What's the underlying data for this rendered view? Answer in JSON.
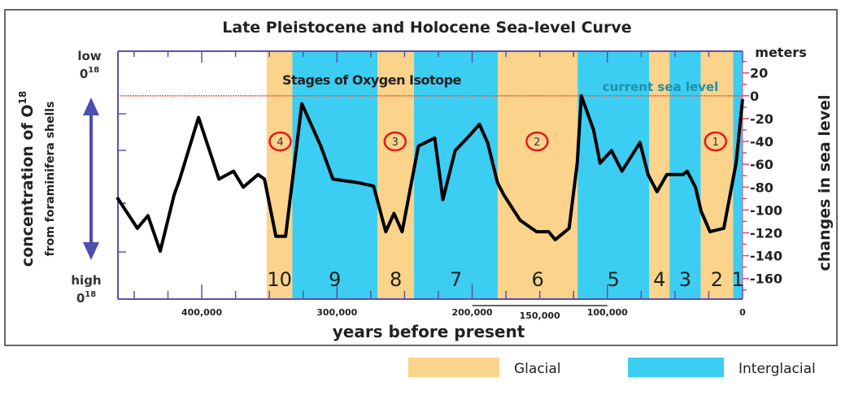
{
  "chart_data": {
    "type": "line",
    "title": "Late Pleistocene and Holocene Sea-level Curve",
    "xlabel": "years before present",
    "ylabel_right": "changes in sea level",
    "right_unit": "meters",
    "ylabel_left": "concentration of O",
    "ylabel_left_sup": "18",
    "ylabel_left_sub": "from foraminifera shells",
    "left_top_label": "low",
    "left_bottom_label": "high",
    "left_iso": "0",
    "left_iso_sup": "18",
    "xlim": [
      462000,
      0
    ],
    "ylim": [
      -178,
      39
    ],
    "x_ticks": [
      {
        "value": 400000,
        "label": "400,000"
      },
      {
        "value": 300000,
        "label": "300,000"
      },
      {
        "value": 200000,
        "label": "200,000"
      },
      {
        "value": 100000,
        "label": "100,000"
      },
      {
        "value": 0,
        "label": "0"
      }
    ],
    "x_extra_label": {
      "value": 150000,
      "label": "150,000",
      "span": [
        200000,
        100000
      ]
    },
    "y_ticks": [
      {
        "value": 20,
        "label": "20"
      },
      {
        "value": 0,
        "label": "0"
      },
      {
        "value": -20,
        "label": "-20"
      },
      {
        "value": -40,
        "label": "-40"
      },
      {
        "value": -60,
        "label": "-60"
      },
      {
        "value": -80,
        "label": "-80"
      },
      {
        "value": -100,
        "label": "-100"
      },
      {
        "value": -120,
        "label": "-120"
      },
      {
        "value": -140,
        "label": "-140"
      },
      {
        "value": -160,
        "label": "-160"
      }
    ],
    "current_sea_level": {
      "value": 0,
      "label": "current sea level"
    },
    "stages_label": "Stages of Oxygen Isotope",
    "stages": [
      {
        "label": "10",
        "type": "glacial",
        "from": 352000,
        "to": 333000
      },
      {
        "label": "9",
        "type": "interglacial",
        "from": 333000,
        "to": 270000
      },
      {
        "label": "8",
        "type": "glacial",
        "from": 270000,
        "to": 243000
      },
      {
        "label": "7",
        "type": "interglacial",
        "from": 243000,
        "to": 181000
      },
      {
        "label": "6",
        "type": "glacial",
        "from": 181000,
        "to": 122000
      },
      {
        "label": "5",
        "type": "interglacial",
        "from": 122000,
        "to": 69000
      },
      {
        "label": "4",
        "type": "glacial",
        "from": 69000,
        "to": 54000
      },
      {
        "label": "3",
        "type": "interglacial",
        "from": 54000,
        "to": 31000
      },
      {
        "label": "2",
        "type": "glacial",
        "from": 31000,
        "to": 7000
      },
      {
        "label": "1",
        "type": "interglacial",
        "from": 7000,
        "to": 0
      }
    ],
    "glacial_markers": [
      {
        "label": "4",
        "x": 342000,
        "y": -40
      },
      {
        "label": "3",
        "x": 257000,
        "y": -40
      },
      {
        "label": "2",
        "x": 152000,
        "y": -40
      },
      {
        "label": "1",
        "x": 20000,
        "y": -40
      }
    ],
    "series": [
      {
        "name": "sea level",
        "points": [
          [
            462600,
            -89
          ],
          [
            447600,
            -116
          ],
          [
            439800,
            -105
          ],
          [
            430700,
            -136
          ],
          [
            420500,
            -87
          ],
          [
            416300,
            -73
          ],
          [
            402400,
            -19
          ],
          [
            387300,
            -73
          ],
          [
            376500,
            -66
          ],
          [
            369300,
            -80
          ],
          [
            358400,
            -69
          ],
          [
            353600,
            -73
          ],
          [
            345200,
            -123
          ],
          [
            338000,
            -123
          ],
          [
            326000,
            -7
          ],
          [
            312000,
            -44
          ],
          [
            303000,
            -73
          ],
          [
            284900,
            -76
          ],
          [
            272900,
            -79
          ],
          [
            263900,
            -119
          ],
          [
            257800,
            -103
          ],
          [
            251800,
            -119
          ],
          [
            239800,
            -44
          ],
          [
            227700,
            -37
          ],
          [
            221700,
            -91
          ],
          [
            212600,
            -48
          ],
          [
            203600,
            -37
          ],
          [
            194600,
            -25
          ],
          [
            188600,
            -41
          ],
          [
            181300,
            -76
          ],
          [
            176500,
            -87
          ],
          [
            164500,
            -109
          ],
          [
            152400,
            -119
          ],
          [
            143400,
            -119
          ],
          [
            138600,
            -126
          ],
          [
            128300,
            -116
          ],
          [
            122300,
            -59
          ],
          [
            119300,
            0
          ],
          [
            110200,
            -30
          ],
          [
            105400,
            -59
          ],
          [
            97000,
            -48
          ],
          [
            89200,
            -66
          ],
          [
            75900,
            -41
          ],
          [
            69900,
            -69
          ],
          [
            63300,
            -84
          ],
          [
            56000,
            -69
          ],
          [
            44000,
            -69
          ],
          [
            41000,
            -66
          ],
          [
            34900,
            -80
          ],
          [
            30700,
            -101
          ],
          [
            24100,
            -119
          ],
          [
            13900,
            -116
          ],
          [
            4800,
            -59
          ],
          [
            0,
            -3
          ]
        ]
      }
    ],
    "legend": [
      {
        "label": "Glacial",
        "color": "#fbd38a"
      },
      {
        "label": "Interglacial",
        "color": "#3ccdf2"
      }
    ],
    "legend_position": "bottom-right",
    "colors": {
      "glacial": "#fbd38a",
      "interglacial": "#3ccdf2",
      "axis": "#5b4fb0",
      "sealevel": "#e8553a",
      "right_ticks": "#e0457a",
      "curve": "#000000",
      "marker": "#e01b1b"
    }
  }
}
